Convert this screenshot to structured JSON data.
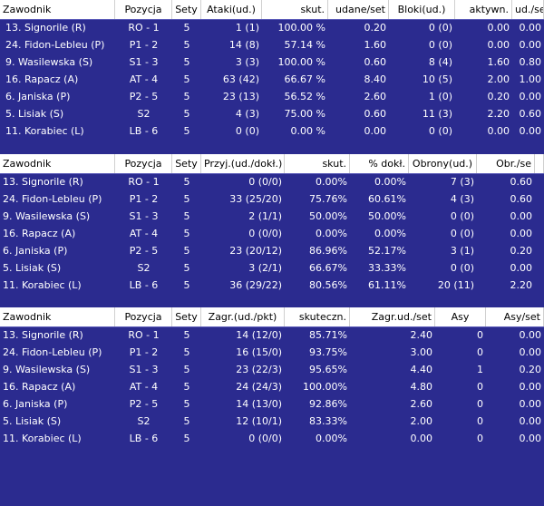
{
  "attack": {
    "headers": [
      "Zawodnik",
      "Pozycja",
      "Sety",
      "Ataki(ud.)",
      "skut.",
      "udane/set",
      "Bloki(ud.)",
      "aktywn.",
      "ud./se"
    ],
    "rows": [
      [
        "13. Signorile (R)",
        "RO - 1",
        "5",
        "1 (1)",
        "100.00 %",
        "0.20",
        "0 (0)",
        "0.00",
        "0.00"
      ],
      [
        "24. Fidon-Lebleu (P)",
        "P1 - 2",
        "5",
        "14 (8)",
        "57.14 %",
        "1.60",
        "0 (0)",
        "0.00",
        "0.00"
      ],
      [
        "9. Wasilewska (S)",
        "S1 - 3",
        "5",
        "3 (3)",
        "100.00 %",
        "0.60",
        "8 (4)",
        "1.60",
        "0.80"
      ],
      [
        "16. Rapacz (A)",
        "AT - 4",
        "5",
        "63 (42)",
        "66.67 %",
        "8.40",
        "10 (5)",
        "2.00",
        "1.00"
      ],
      [
        "6. Janiska (P)",
        "P2 - 5",
        "5",
        "23 (13)",
        "56.52 %",
        "2.60",
        "1 (0)",
        "0.20",
        "0.00"
      ],
      [
        "5. Lisiak (S)",
        "S2",
        "5",
        "4 (3)",
        "75.00 %",
        "0.60",
        "11 (3)",
        "2.20",
        "0.60"
      ],
      [
        "11. Korabiec (L)",
        "LB - 6",
        "5",
        "0 (0)",
        "0.00 %",
        "0.00",
        "0 (0)",
        "0.00",
        "0.00"
      ]
    ]
  },
  "reception": {
    "headers": [
      "Zawodnik",
      "Pozycja",
      "Sety",
      "Przyj.(ud./dokł.)",
      "skut.",
      "% dokł.",
      "Obrony(ud.)",
      "Obr./se",
      ""
    ],
    "rows": [
      [
        "13. Signorile (R)",
        "RO - 1",
        "5",
        "0 (0/0)",
        "0.00%",
        "0.00%",
        "7 (3)",
        "0.60",
        ""
      ],
      [
        "24. Fidon-Lebleu (P)",
        "P1 - 2",
        "5",
        "33 (25/20)",
        "75.76%",
        "60.61%",
        "4 (3)",
        "0.60",
        ""
      ],
      [
        "9. Wasilewska (S)",
        "S1 - 3",
        "5",
        "2 (1/1)",
        "50.00%",
        "50.00%",
        "0 (0)",
        "0.00",
        ""
      ],
      [
        "16. Rapacz (A)",
        "AT - 4",
        "5",
        "0 (0/0)",
        "0.00%",
        "0.00%",
        "0 (0)",
        "0.00",
        ""
      ],
      [
        "6. Janiska (P)",
        "P2 - 5",
        "5",
        "23 (20/12)",
        "86.96%",
        "52.17%",
        "3 (1)",
        "0.20",
        ""
      ],
      [
        "5. Lisiak (S)",
        "S2",
        "5",
        "3 (2/1)",
        "66.67%",
        "33.33%",
        "0 (0)",
        "0.00",
        ""
      ],
      [
        "11. Korabiec (L)",
        "LB - 6",
        "5",
        "36 (29/22)",
        "80.56%",
        "61.11%",
        "20 (11)",
        "2.20",
        ""
      ]
    ]
  },
  "serve": {
    "headers": [
      "Zawodnik",
      "Pozycja",
      "Sety",
      "Zagr.(ud./pkt)",
      "skutеczn.",
      "Zagr.ud./set",
      "Asy",
      "Asy/set",
      ""
    ],
    "rows": [
      [
        "13. Signorile (R)",
        "RO - 1",
        "5",
        "14 (12/0)",
        "85.71%",
        "2.40",
        "0",
        "0.00",
        ""
      ],
      [
        "24. Fidon-Lebleu (P)",
        "P1 - 2",
        "5",
        "16 (15/0)",
        "93.75%",
        "3.00",
        "0",
        "0.00",
        ""
      ],
      [
        "9. Wasilewska (S)",
        "S1 - 3",
        "5",
        "23 (22/3)",
        "95.65%",
        "4.40",
        "1",
        "0.20",
        ""
      ],
      [
        "16. Rapacz (A)",
        "AT - 4",
        "5",
        "24 (24/3)",
        "100.00%",
        "4.80",
        "0",
        "0.00",
        ""
      ],
      [
        "6. Janiska (P)",
        "P2 - 5",
        "5",
        "14 (13/0)",
        "92.86%",
        "2.60",
        "0",
        "0.00",
        ""
      ],
      [
        "5. Lisiak (S)",
        "S2",
        "5",
        "12 (10/1)",
        "83.33%",
        "2.00",
        "0",
        "0.00",
        ""
      ],
      [
        "11. Korabiec (L)",
        "LB - 6",
        "5",
        "0 (0/0)",
        "0.00%",
        "0.00",
        "0",
        "0.00",
        ""
      ]
    ]
  },
  "colors": {
    "background": "#2b2b8f",
    "header_background": "#ffffff",
    "header_text": "#000000",
    "cell_text": "#ffffff"
  }
}
